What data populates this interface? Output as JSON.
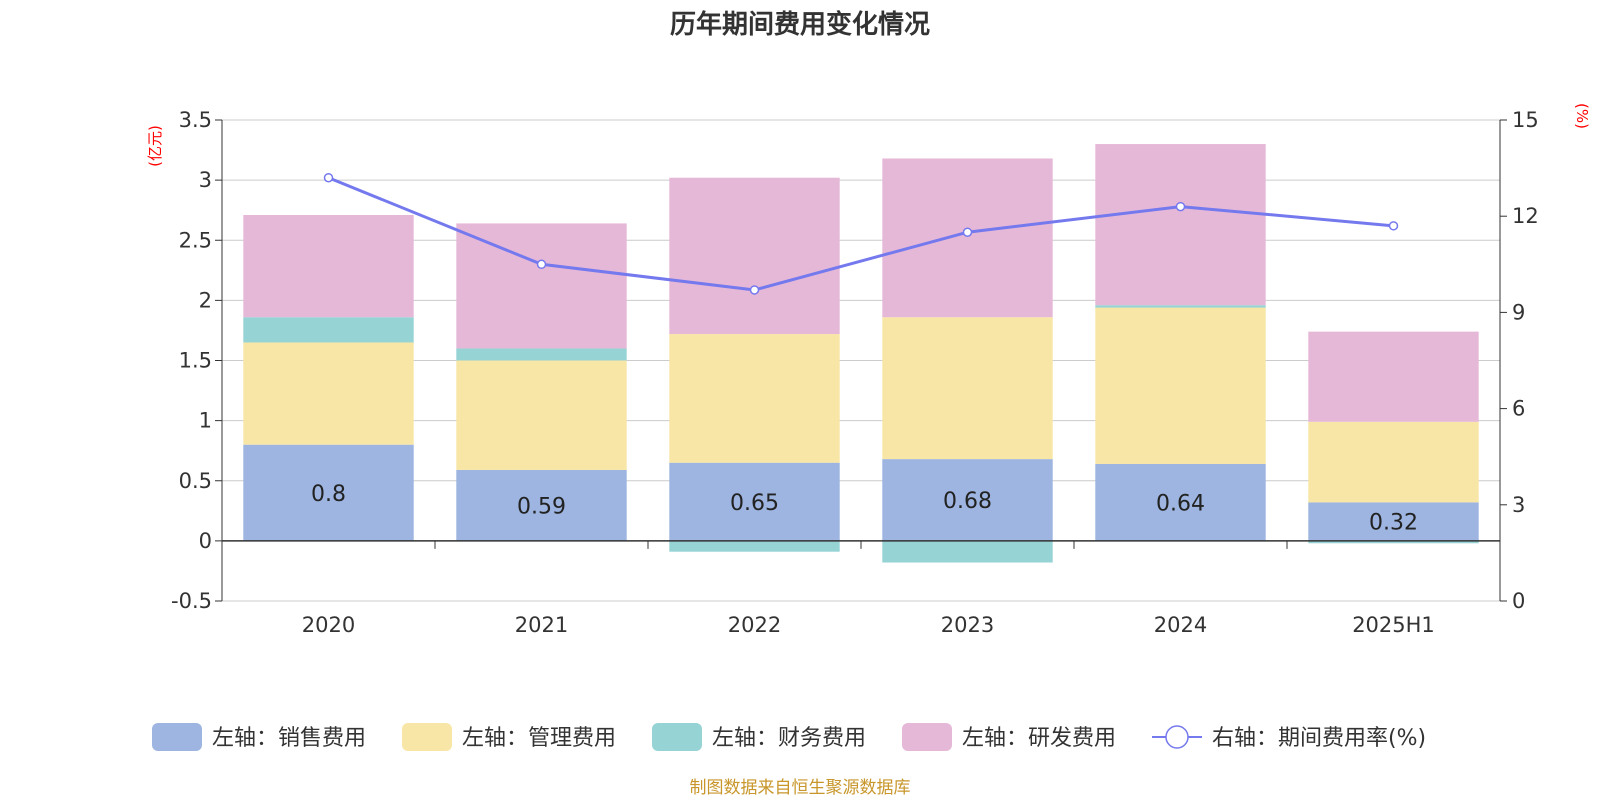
{
  "chart_data": {
    "type": "bar",
    "title": "历年期间费用变化情况",
    "categories": [
      "2020",
      "2021",
      "2022",
      "2023",
      "2024",
      "2025H1"
    ],
    "left_axis": {
      "unit": "(亿元)",
      "range": [
        -0.5,
        3.5
      ],
      "ticks": [
        "-0.5",
        "0",
        "0.5",
        "1",
        "1.5",
        "2",
        "2.5",
        "3",
        "3.5"
      ]
    },
    "right_axis": {
      "unit": "(%)",
      "range": [
        0,
        15
      ],
      "ticks": [
        "0",
        "3",
        "6",
        "9",
        "12",
        "15"
      ]
    },
    "grid": true,
    "legend_position": "bottom",
    "series": [
      {
        "name": "左轴：销售费用",
        "type": "bar",
        "color": "#9db5e0",
        "values": [
          0.8,
          0.59,
          0.65,
          0.68,
          0.64,
          0.32
        ],
        "labels": [
          "0.8",
          "0.59",
          "0.65",
          "0.68",
          "0.64",
          "0.32"
        ]
      },
      {
        "name": "左轴：管理费用",
        "type": "bar",
        "color": "#f8e6a6",
        "values": [
          0.85,
          0.91,
          1.07,
          1.18,
          1.3,
          0.67
        ]
      },
      {
        "name": "左轴：财务费用",
        "type": "bar",
        "color": "#96d3d4",
        "values": [
          0.21,
          0.1,
          -0.09,
          -0.18,
          0.02,
          -0.02
        ]
      },
      {
        "name": "左轴：研发费用",
        "type": "bar",
        "color": "#e6b8d8",
        "values": [
          0.85,
          1.04,
          1.3,
          1.32,
          1.34,
          0.75
        ]
      },
      {
        "name": "右轴：期间费用率(%)",
        "type": "line",
        "color": "#7479ee",
        "values": [
          13.2,
          10.5,
          9.7,
          11.5,
          12.3,
          11.7
        ]
      }
    ],
    "source": "制图数据来自恒生聚源数据库"
  }
}
